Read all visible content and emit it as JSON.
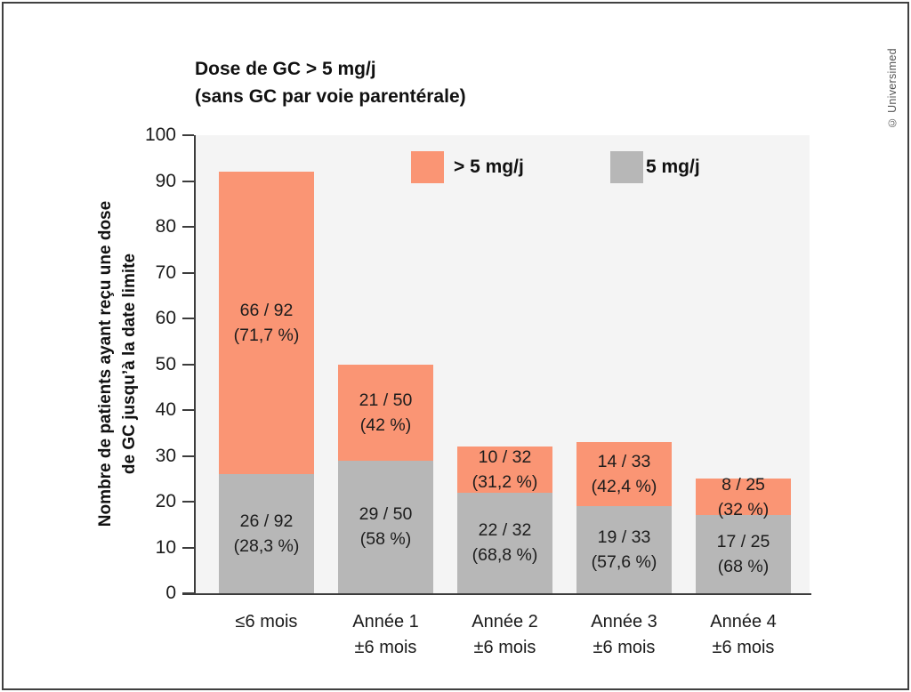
{
  "copyright": "© Universimed",
  "title": {
    "line1": "Dose de GC > 5 mg/j",
    "line2": "(sans GC par voie parentérale)"
  },
  "y_axis": {
    "title_line1": "Nombre de patients ayant reçu une dose",
    "title_line2": "de GC jusqu’à la date limite",
    "ticks": [
      0,
      10,
      20,
      30,
      40,
      50,
      60,
      70,
      80,
      90,
      100
    ]
  },
  "legend": [
    {
      "label": "> 5 mg/j",
      "color": "#FA9574"
    },
    {
      "label": "5 mg/j",
      "color": "#B7B7B7"
    }
  ],
  "chart_data": {
    "type": "bar",
    "stacked": true,
    "title": "Dose de GC > 5 mg/j (sans GC par voie parentérale)",
    "ylabel": "Nombre de patients ayant reçu une dose de GC jusqu’à la date limite",
    "xlabel": "",
    "ylim": [
      0,
      100
    ],
    "grid": false,
    "legend_position": "top-inside",
    "plot_background": "#F4F4F4",
    "categories": [
      [
        "≤6 mois"
      ],
      [
        "Année 1",
        "±6 mois"
      ],
      [
        "Année 2",
        "±6 mois"
      ],
      [
        "Année 3",
        "±6 mois"
      ],
      [
        "Année 4",
        "±6 mois"
      ]
    ],
    "series": [
      {
        "name": "5 mg/j",
        "color": "#B7B7B7",
        "values": [
          26,
          29,
          22,
          19,
          17
        ],
        "labels": [
          [
            "26 / 92",
            "(28,3 %)"
          ],
          [
            "29 / 50",
            "(58 %)"
          ],
          [
            "22 / 32",
            "(68,8 %)"
          ],
          [
            "19 / 33",
            "(57,6 %)"
          ],
          [
            "17 / 25",
            "(68 %)"
          ]
        ]
      },
      {
        "name": "> 5 mg/j",
        "color": "#FA9574",
        "values": [
          66,
          21,
          10,
          14,
          8
        ],
        "labels": [
          [
            "66 / 92",
            "(71,7 %)"
          ],
          [
            "21 / 50",
            "(42 %)"
          ],
          [
            "10 / 32",
            "(31,2 %)"
          ],
          [
            "14 / 33",
            "(42,4 %)"
          ],
          [
            "8 / 25",
            "(32 %)"
          ]
        ]
      }
    ],
    "totals": [
      92,
      50,
      32,
      33,
      25
    ]
  }
}
